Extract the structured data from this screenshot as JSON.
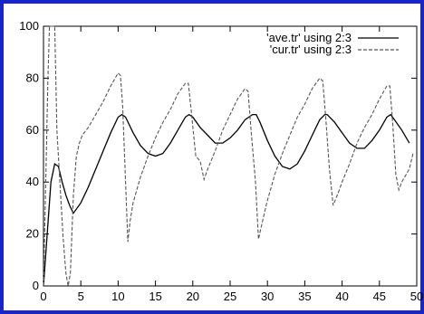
{
  "chart_data": {
    "type": "line",
    "xlim": [
      0,
      50
    ],
    "ylim": [
      0,
      100
    ],
    "x_ticks": [
      0,
      5,
      10,
      15,
      20,
      25,
      30,
      35,
      40,
      45,
      50
    ],
    "y_ticks": [
      0,
      20,
      40,
      60,
      80,
      100
    ],
    "grid": false,
    "legend_position": "top-right",
    "series": [
      {
        "name": "'ave.tr' using 2:3",
        "style": "solid",
        "color": "#000000",
        "points": [
          [
            0,
            0
          ],
          [
            0.5,
            20
          ],
          [
            1,
            40
          ],
          [
            1.5,
            47
          ],
          [
            2,
            46
          ],
          [
            2.5,
            40
          ],
          [
            3,
            35
          ],
          [
            3.5,
            31
          ],
          [
            4,
            28
          ],
          [
            5,
            32
          ],
          [
            6,
            38
          ],
          [
            7,
            45
          ],
          [
            8,
            52
          ],
          [
            9,
            59
          ],
          [
            10,
            65
          ],
          [
            10.5,
            66
          ],
          [
            11,
            65
          ],
          [
            12,
            59
          ],
          [
            13,
            54
          ],
          [
            14,
            51
          ],
          [
            15,
            50
          ],
          [
            16,
            51
          ],
          [
            17,
            55
          ],
          [
            18,
            60
          ],
          [
            19,
            65
          ],
          [
            19.5,
            66
          ],
          [
            20,
            65
          ],
          [
            21,
            61
          ],
          [
            22,
            58
          ],
          [
            23,
            55
          ],
          [
            24,
            55
          ],
          [
            25,
            57
          ],
          [
            26,
            60
          ],
          [
            27,
            64
          ],
          [
            28,
            66
          ],
          [
            28.5,
            66
          ],
          [
            29,
            63
          ],
          [
            30,
            56
          ],
          [
            31,
            50
          ],
          [
            32,
            46
          ],
          [
            33,
            45
          ],
          [
            34,
            47
          ],
          [
            35,
            52
          ],
          [
            36,
            58
          ],
          [
            37,
            64
          ],
          [
            37.7,
            66
          ],
          [
            38,
            66
          ],
          [
            39,
            63
          ],
          [
            40,
            59
          ],
          [
            41,
            55
          ],
          [
            42,
            53
          ],
          [
            43,
            53
          ],
          [
            44,
            56
          ],
          [
            45,
            60
          ],
          [
            46,
            65
          ],
          [
            46.5,
            66
          ],
          [
            47,
            64
          ],
          [
            48,
            60
          ],
          [
            49,
            55
          ]
        ]
      },
      {
        "name": "'cur.tr' using 2:3",
        "style": "dashed",
        "color": "#555555",
        "points": [
          [
            0,
            0
          ],
          [
            0.3,
            40
          ],
          [
            0.6,
            80
          ],
          [
            0.8,
            100
          ],
          [
            1.5,
            100
          ],
          [
            1.8,
            60
          ],
          [
            2.2,
            40
          ],
          [
            2.6,
            20
          ],
          [
            3,
            5
          ],
          [
            3.3,
            0
          ],
          [
            3.6,
            5
          ],
          [
            4,
            35
          ],
          [
            4.4,
            50
          ],
          [
            4.8,
            55
          ],
          [
            5.2,
            58
          ],
          [
            6,
            61
          ],
          [
            7,
            66
          ],
          [
            8,
            71
          ],
          [
            9,
            77
          ],
          [
            10,
            82
          ],
          [
            10.3,
            81
          ],
          [
            10.6,
            70
          ],
          [
            11,
            40
          ],
          [
            11.3,
            17
          ],
          [
            11.6,
            25
          ],
          [
            12,
            32
          ],
          [
            13,
            42
          ],
          [
            14,
            50
          ],
          [
            15,
            57
          ],
          [
            16,
            63
          ],
          [
            17,
            68
          ],
          [
            18,
            74
          ],
          [
            19,
            78
          ],
          [
            19.4,
            78
          ],
          [
            19.8,
            67
          ],
          [
            20.4,
            50
          ],
          [
            21,
            48
          ],
          [
            21.5,
            41
          ],
          [
            22,
            45
          ],
          [
            23,
            52
          ],
          [
            24,
            60
          ],
          [
            25,
            66
          ],
          [
            26,
            72
          ],
          [
            27,
            76
          ],
          [
            27.4,
            75
          ],
          [
            27.8,
            60
          ],
          [
            28.4,
            40
          ],
          [
            28.8,
            18
          ],
          [
            29.5,
            27
          ],
          [
            30,
            33
          ],
          [
            31,
            43
          ],
          [
            32,
            51
          ],
          [
            33,
            58
          ],
          [
            34,
            65
          ],
          [
            35,
            70
          ],
          [
            36,
            76
          ],
          [
            37,
            80
          ],
          [
            37.4,
            79
          ],
          [
            37.8,
            65
          ],
          [
            38.3,
            45
          ],
          [
            38.8,
            31
          ],
          [
            39.5,
            36
          ],
          [
            40,
            40
          ],
          [
            41,
            47
          ],
          [
            42,
            55
          ],
          [
            43,
            61
          ],
          [
            44,
            66
          ],
          [
            45,
            72
          ],
          [
            46,
            77
          ],
          [
            46.4,
            77
          ],
          [
            46.8,
            62
          ],
          [
            47.2,
            43
          ],
          [
            47.6,
            37
          ],
          [
            48,
            40
          ],
          [
            49,
            45
          ],
          [
            49.5,
            51
          ]
        ]
      }
    ]
  }
}
